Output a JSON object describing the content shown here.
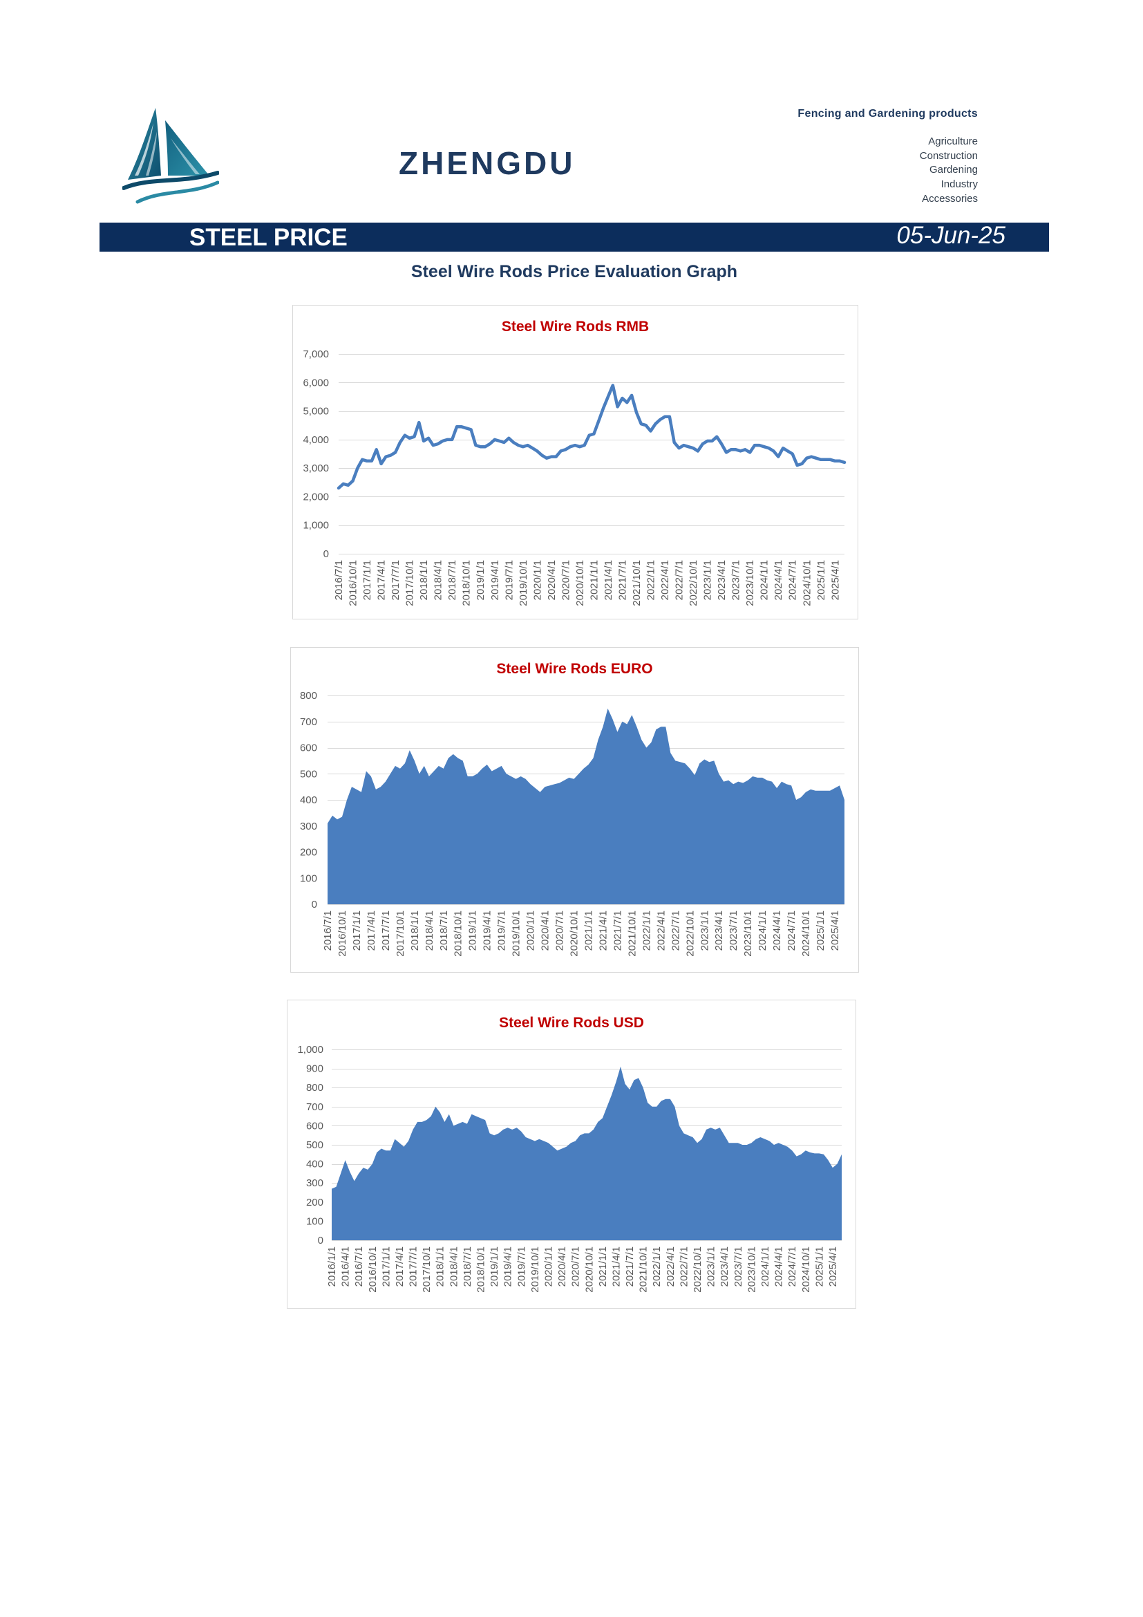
{
  "header": {
    "brand": "ZHENGDU",
    "tagline": "Fencing and Gardening products",
    "categories": [
      "Agriculture",
      "Construction",
      "Gardening",
      "Industry",
      "Accessories"
    ]
  },
  "banner": {
    "title": "STEEL PRICE",
    "date": "05-Jun-25"
  },
  "section_title": "Steel Wire Rods Price Evaluation Graph",
  "icons": {
    "logo": "sailboat-logo"
  },
  "colors": {
    "banner": "#0c2d5c",
    "brand": "#1f3a5f",
    "chart_title": "#c00000",
    "series": "#4a7ebf",
    "gridline": "#d9d9d9"
  },
  "chart_data": [
    {
      "type": "line",
      "title": "Steel Wire Rods RMB",
      "ylim": [
        0,
        7000
      ],
      "y_tick_labels": [
        "0",
        "1,000",
        "2,000",
        "3,000",
        "4,000",
        "5,000",
        "6,000",
        "7,000"
      ],
      "x_ticks": [
        "2016/7/1",
        "2016/10/1",
        "2017/1/1",
        "2017/4/1",
        "2017/7/1",
        "2017/10/1",
        "2018/1/1",
        "2018/4/1",
        "2018/7/1",
        "2018/10/1",
        "2019/1/1",
        "2019/4/1",
        "2019/7/1",
        "2019/10/1",
        "2020/1/1",
        "2020/4/1",
        "2020/7/1",
        "2020/10/1",
        "2021/1/1",
        "2021/4/1",
        "2021/7/1",
        "2021/10/1",
        "2022/1/1",
        "2022/4/1",
        "2022/7/1",
        "2022/10/1",
        "2023/1/1",
        "2023/4/1",
        "2023/7/1",
        "2023/10/1",
        "2024/1/1",
        "2024/4/1",
        "2024/7/1",
        "2024/10/1",
        "2025/1/1",
        "2025/4/1"
      ],
      "grid": true,
      "legend": "none",
      "x": [
        "2016/7/1",
        "2016/8/1",
        "2016/9/1",
        "2016/10/1",
        "2016/11/1",
        "2016/12/1",
        "2017/1/1",
        "2017/2/1",
        "2017/3/1",
        "2017/4/1",
        "2017/5/1",
        "2017/6/1",
        "2017/7/1",
        "2017/8/1",
        "2017/9/1",
        "2017/10/1",
        "2017/11/1",
        "2017/12/1",
        "2018/1/1",
        "2018/2/1",
        "2018/3/1",
        "2018/4/1",
        "2018/5/1",
        "2018/6/1",
        "2018/7/1",
        "2018/8/1",
        "2018/9/1",
        "2018/10/1",
        "2018/11/1",
        "2018/12/1",
        "2019/1/1",
        "2019/2/1",
        "2019/3/1",
        "2019/4/1",
        "2019/5/1",
        "2019/6/1",
        "2019/7/1",
        "2019/8/1",
        "2019/9/1",
        "2019/10/1",
        "2019/11/1",
        "2019/12/1",
        "2020/1/1",
        "2020/2/1",
        "2020/3/1",
        "2020/4/1",
        "2020/5/1",
        "2020/6/1",
        "2020/7/1",
        "2020/8/1",
        "2020/9/1",
        "2020/10/1",
        "2020/11/1",
        "2020/12/1",
        "2021/1/1",
        "2021/2/1",
        "2021/3/1",
        "2021/4/1",
        "2021/5/1",
        "2021/6/1",
        "2021/7/1",
        "2021/8/1",
        "2021/9/1",
        "2021/10/1",
        "2021/11/1",
        "2021/12/1",
        "2022/1/1",
        "2022/2/1",
        "2022/3/1",
        "2022/4/1",
        "2022/5/1",
        "2022/6/1",
        "2022/7/1",
        "2022/8/1",
        "2022/9/1",
        "2022/10/1",
        "2022/11/1",
        "2022/12/1",
        "2023/1/1",
        "2023/2/1",
        "2023/3/1",
        "2023/4/1",
        "2023/5/1",
        "2023/6/1",
        "2023/7/1",
        "2023/8/1",
        "2023/9/1",
        "2023/10/1",
        "2023/11/1",
        "2023/12/1",
        "2024/1/1",
        "2024/2/1",
        "2024/3/1",
        "2024/4/1",
        "2024/5/1",
        "2024/6/1",
        "2024/7/1",
        "2024/8/1",
        "2024/9/1",
        "2024/10/1",
        "2024/11/1",
        "2024/12/1",
        "2025/1/1",
        "2025/2/1",
        "2025/3/1",
        "2025/4/1",
        "2025/5/1",
        "2025/6/1"
      ],
      "series": [
        {
          "values": [
            2300,
            2450,
            2400,
            2550,
            3000,
            3300,
            3250,
            3250,
            3650,
            3150,
            3400,
            3450,
            3550,
            3900,
            4150,
            4050,
            4100,
            4600,
            3950,
            4050,
            3800,
            3850,
            3950,
            4000,
            4000,
            4450,
            4450,
            4400,
            4350,
            3800,
            3750,
            3750,
            3850,
            4000,
            3950,
            3900,
            4050,
            3900,
            3800,
            3750,
            3800,
            3700,
            3600,
            3450,
            3350,
            3400,
            3400,
            3600,
            3650,
            3750,
            3800,
            3750,
            3800,
            4150,
            4200,
            4650,
            5100,
            5500,
            5900,
            5150,
            5450,
            5300,
            5550,
            4950,
            4550,
            4500,
            4300,
            4550,
            4700,
            4800,
            4800,
            3900,
            3700,
            3800,
            3750,
            3700,
            3600,
            3850,
            3950,
            3950,
            4100,
            3850,
            3550,
            3650,
            3650,
            3600,
            3650,
            3550,
            3800,
            3800,
            3750,
            3700,
            3600,
            3400,
            3700,
            3600,
            3500,
            3100,
            3150,
            3350,
            3400,
            3350,
            3300,
            3300,
            3300,
            3250,
            3250,
            3200
          ]
        }
      ]
    },
    {
      "type": "area",
      "title": "Steel Wire Rods EURO",
      "ylim": [
        0,
        800
      ],
      "y_tick_labels": [
        "0",
        "100",
        "200",
        "300",
        "400",
        "500",
        "600",
        "700",
        "800"
      ],
      "x_ticks": [
        "2016/7/1",
        "2016/10/1",
        "2017/1/1",
        "2017/4/1",
        "2017/7/1",
        "2017/10/1",
        "2018/1/1",
        "2018/4/1",
        "2018/7/1",
        "2018/10/1",
        "2019/1/1",
        "2019/4/1",
        "2019/7/1",
        "2019/10/1",
        "2020/1/1",
        "2020/4/1",
        "2020/7/1",
        "2020/10/1",
        "2021/1/1",
        "2021/4/1",
        "2021/7/1",
        "2021/10/1",
        "2022/1/1",
        "2022/4/1",
        "2022/7/1",
        "2022/10/1",
        "2023/1/1",
        "2023/4/1",
        "2023/7/1",
        "2023/10/1",
        "2024/1/1",
        "2024/4/1",
        "2024/7/1",
        "2024/10/1",
        "2025/1/1",
        "2025/4/1"
      ],
      "grid": true,
      "legend": "none",
      "x": [
        "2016/7/1",
        "2016/8/1",
        "2016/9/1",
        "2016/10/1",
        "2016/11/1",
        "2016/12/1",
        "2017/1/1",
        "2017/2/1",
        "2017/3/1",
        "2017/4/1",
        "2017/5/1",
        "2017/6/1",
        "2017/7/1",
        "2017/8/1",
        "2017/9/1",
        "2017/10/1",
        "2017/11/1",
        "2017/12/1",
        "2018/1/1",
        "2018/2/1",
        "2018/3/1",
        "2018/4/1",
        "2018/5/1",
        "2018/6/1",
        "2018/7/1",
        "2018/8/1",
        "2018/9/1",
        "2018/10/1",
        "2018/11/1",
        "2018/12/1",
        "2019/1/1",
        "2019/2/1",
        "2019/3/1",
        "2019/4/1",
        "2019/5/1",
        "2019/6/1",
        "2019/7/1",
        "2019/8/1",
        "2019/9/1",
        "2019/10/1",
        "2019/11/1",
        "2019/12/1",
        "2020/1/1",
        "2020/2/1",
        "2020/3/1",
        "2020/4/1",
        "2020/5/1",
        "2020/6/1",
        "2020/7/1",
        "2020/8/1",
        "2020/9/1",
        "2020/10/1",
        "2020/11/1",
        "2020/12/1",
        "2021/1/1",
        "2021/2/1",
        "2021/3/1",
        "2021/4/1",
        "2021/5/1",
        "2021/6/1",
        "2021/7/1",
        "2021/8/1",
        "2021/9/1",
        "2021/10/1",
        "2021/11/1",
        "2021/12/1",
        "2022/1/1",
        "2022/2/1",
        "2022/3/1",
        "2022/4/1",
        "2022/5/1",
        "2022/6/1",
        "2022/7/1",
        "2022/8/1",
        "2022/9/1",
        "2022/10/1",
        "2022/11/1",
        "2022/12/1",
        "2023/1/1",
        "2023/2/1",
        "2023/3/1",
        "2023/4/1",
        "2023/5/1",
        "2023/6/1",
        "2023/7/1",
        "2023/8/1",
        "2023/9/1",
        "2023/10/1",
        "2023/11/1",
        "2023/12/1",
        "2024/1/1",
        "2024/2/1",
        "2024/3/1",
        "2024/4/1",
        "2024/5/1",
        "2024/6/1",
        "2024/7/1",
        "2024/8/1",
        "2024/9/1",
        "2024/10/1",
        "2024/11/1",
        "2024/12/1",
        "2025/1/1",
        "2025/2/1",
        "2025/3/1",
        "2025/4/1",
        "2025/5/1",
        "2025/6/1"
      ],
      "series": [
        {
          "values": [
            310,
            340,
            325,
            335,
            400,
            450,
            440,
            430,
            510,
            490,
            440,
            450,
            470,
            500,
            530,
            520,
            540,
            590,
            550,
            500,
            530,
            490,
            510,
            530,
            520,
            560,
            575,
            560,
            550,
            490,
            490,
            500,
            520,
            535,
            510,
            520,
            530,
            500,
            490,
            480,
            490,
            480,
            460,
            445,
            430,
            450,
            455,
            460,
            465,
            475,
            485,
            480,
            500,
            520,
            535,
            560,
            630,
            680,
            750,
            710,
            660,
            700,
            690,
            725,
            680,
            630,
            600,
            620,
            670,
            680,
            680,
            580,
            550,
            545,
            540,
            520,
            495,
            540,
            555,
            545,
            550,
            500,
            470,
            475,
            460,
            470,
            465,
            475,
            490,
            485,
            485,
            475,
            470,
            445,
            470,
            460,
            455,
            400,
            410,
            430,
            440,
            435,
            435,
            435,
            435,
            445,
            455,
            400
          ]
        }
      ]
    },
    {
      "type": "area",
      "title": "Steel Wire Rods USD",
      "ylim": [
        0,
        1000
      ],
      "y_tick_labels": [
        "0",
        "100",
        "200",
        "300",
        "400",
        "500",
        "600",
        "700",
        "800",
        "900",
        "1,000"
      ],
      "x_ticks": [
        "2016/1/1",
        "2016/4/1",
        "2016/7/1",
        "2016/10/1",
        "2017/1/1",
        "2017/4/1",
        "2017/7/1",
        "2017/10/1",
        "2018/1/1",
        "2018/4/1",
        "2018/7/1",
        "2018/10/1",
        "2019/1/1",
        "2019/4/1",
        "2019/7/1",
        "2019/10/1",
        "2020/1/1",
        "2020/4/1",
        "2020/7/1",
        "2020/10/1",
        "2021/1/1",
        "2021/4/1",
        "2021/7/1",
        "2021/10/1",
        "2022/1/1",
        "2022/4/1",
        "2022/7/1",
        "2022/10/1",
        "2023/1/1",
        "2023/4/1",
        "2023/7/1",
        "2023/10/1",
        "2024/1/1",
        "2024/4/1",
        "2024/7/1",
        "2024/10/1",
        "2025/1/1",
        "2025/4/1"
      ],
      "grid": true,
      "legend": "none",
      "x": [
        "2016/1/1",
        "2016/2/1",
        "2016/3/1",
        "2016/4/1",
        "2016/5/1",
        "2016/6/1",
        "2016/7/1",
        "2016/8/1",
        "2016/9/1",
        "2016/10/1",
        "2016/11/1",
        "2016/12/1",
        "2017/1/1",
        "2017/2/1",
        "2017/3/1",
        "2017/4/1",
        "2017/5/1",
        "2017/6/1",
        "2017/7/1",
        "2017/8/1",
        "2017/9/1",
        "2017/10/1",
        "2017/11/1",
        "2017/12/1",
        "2018/1/1",
        "2018/2/1",
        "2018/3/1",
        "2018/4/1",
        "2018/5/1",
        "2018/6/1",
        "2018/7/1",
        "2018/8/1",
        "2018/9/1",
        "2018/10/1",
        "2018/11/1",
        "2018/12/1",
        "2019/1/1",
        "2019/2/1",
        "2019/3/1",
        "2019/4/1",
        "2019/5/1",
        "2019/6/1",
        "2019/7/1",
        "2019/8/1",
        "2019/9/1",
        "2019/10/1",
        "2019/11/1",
        "2019/12/1",
        "2020/1/1",
        "2020/2/1",
        "2020/3/1",
        "2020/4/1",
        "2020/5/1",
        "2020/6/1",
        "2020/7/1",
        "2020/8/1",
        "2020/9/1",
        "2020/10/1",
        "2020/11/1",
        "2020/12/1",
        "2021/1/1",
        "2021/2/1",
        "2021/3/1",
        "2021/4/1",
        "2021/5/1",
        "2021/6/1",
        "2021/7/1",
        "2021/8/1",
        "2021/9/1",
        "2021/10/1",
        "2021/11/1",
        "2021/12/1",
        "2022/1/1",
        "2022/2/1",
        "2022/3/1",
        "2022/4/1",
        "2022/5/1",
        "2022/6/1",
        "2022/7/1",
        "2022/8/1",
        "2022/9/1",
        "2022/10/1",
        "2022/11/1",
        "2022/12/1",
        "2023/1/1",
        "2023/2/1",
        "2023/3/1",
        "2023/4/1",
        "2023/5/1",
        "2023/6/1",
        "2023/7/1",
        "2023/8/1",
        "2023/9/1",
        "2023/10/1",
        "2023/11/1",
        "2023/12/1",
        "2024/1/1",
        "2024/2/1",
        "2024/3/1",
        "2024/4/1",
        "2024/5/1",
        "2024/6/1",
        "2024/7/1",
        "2024/8/1",
        "2024/9/1",
        "2024/10/1",
        "2024/11/1",
        "2024/12/1",
        "2025/1/1",
        "2025/2/1",
        "2025/3/1",
        "2025/4/1",
        "2025/5/1",
        "2025/6/1"
      ],
      "series": [
        {
          "values": [
            270,
            280,
            350,
            420,
            360,
            310,
            350,
            380,
            370,
            400,
            460,
            480,
            470,
            470,
            530,
            510,
            490,
            520,
            580,
            620,
            620,
            630,
            650,
            700,
            670,
            620,
            660,
            600,
            610,
            620,
            610,
            660,
            650,
            640,
            630,
            560,
            550,
            560,
            580,
            590,
            580,
            590,
            570,
            540,
            530,
            520,
            530,
            520,
            510,
            490,
            470,
            480,
            490,
            510,
            520,
            550,
            560,
            560,
            580,
            620,
            640,
            700,
            760,
            830,
            910,
            820,
            790,
            840,
            850,
            800,
            720,
            700,
            700,
            730,
            740,
            740,
            700,
            600,
            560,
            550,
            540,
            510,
            530,
            580,
            590,
            580,
            590,
            550,
            510,
            510,
            510,
            500,
            500,
            510,
            530,
            540,
            530,
            520,
            500,
            510,
            500,
            490,
            470,
            440,
            450,
            470,
            460,
            455,
            455,
            450,
            420,
            380,
            400,
            450
          ]
        }
      ]
    }
  ]
}
